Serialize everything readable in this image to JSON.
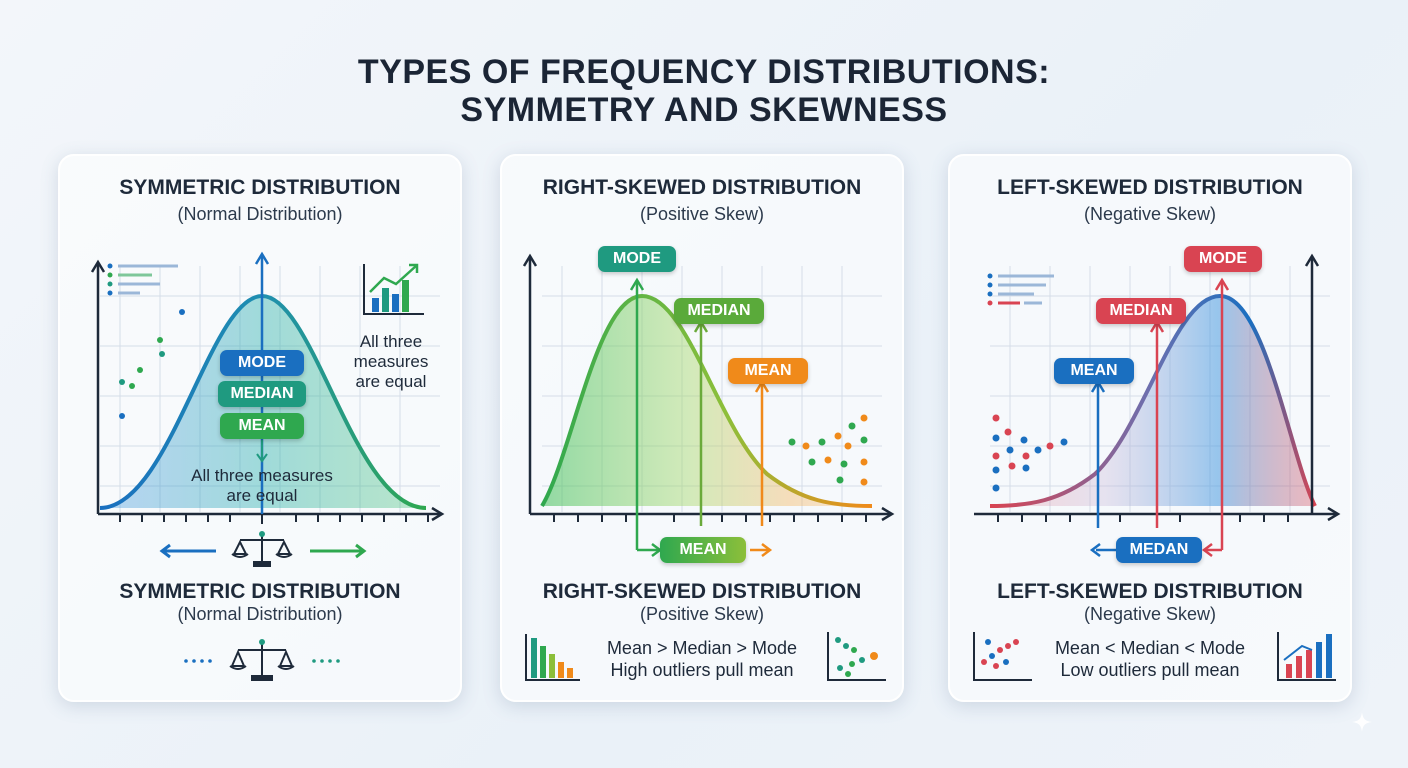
{
  "title": {
    "line1": "TYPES OF FREQUENCY DISTRIBUTIONS:",
    "line2": "SYMMETRY AND SKEWNESS"
  },
  "panels": [
    {
      "title": "SYMMETRIC DISTRIBUTION",
      "subtitle": "(Normal Distribution)",
      "labels": {
        "mode": "MODE",
        "median": "MEDIAN",
        "mean": "MEAN"
      },
      "note_right": [
        "All three",
        "measures",
        "are equal"
      ],
      "note_center": [
        "All three measures",
        "are equal"
      ],
      "bottom_title": "SYMMETRIC DISTRIBUTION",
      "bottom_subtitle": "(Normal Distribution)"
    },
    {
      "title": "RIGHT-SKEWED DISTRIBUTION",
      "subtitle": "(Positive Skew)",
      "labels": {
        "mode": "MODE",
        "median": "MEDIAN",
        "mean": "MEAN",
        "mean_bottom": "MEAN"
      },
      "bottom_title": "RIGHT-SKEWED DISTRIBUTION",
      "bottom_subtitle": "(Positive Skew)",
      "line1": "Mean > Median > Mode",
      "line2": "High outliers pull mean"
    },
    {
      "title": "LEFT-SKEWED DISTRIBUTION",
      "subtitle": "(Negative Skew)",
      "labels": {
        "mode": "MODE",
        "median": "MEDIAN",
        "mean": "MEAN",
        "median_bottom": "MEDAN"
      },
      "bottom_title": "LEFT-SKEWED DISTRIBUTION",
      "bottom_subtitle": "(Negative Skew)",
      "line1": "Mean < Median < Mode",
      "line2": "Low outliers pull mean"
    }
  ],
  "colors": {
    "blue": "#1a6fc0",
    "teal": "#1f9a80",
    "green": "#2fa84f",
    "orange": "#f08a1a",
    "red": "#d94452",
    "navy": "#1e2a3a"
  }
}
